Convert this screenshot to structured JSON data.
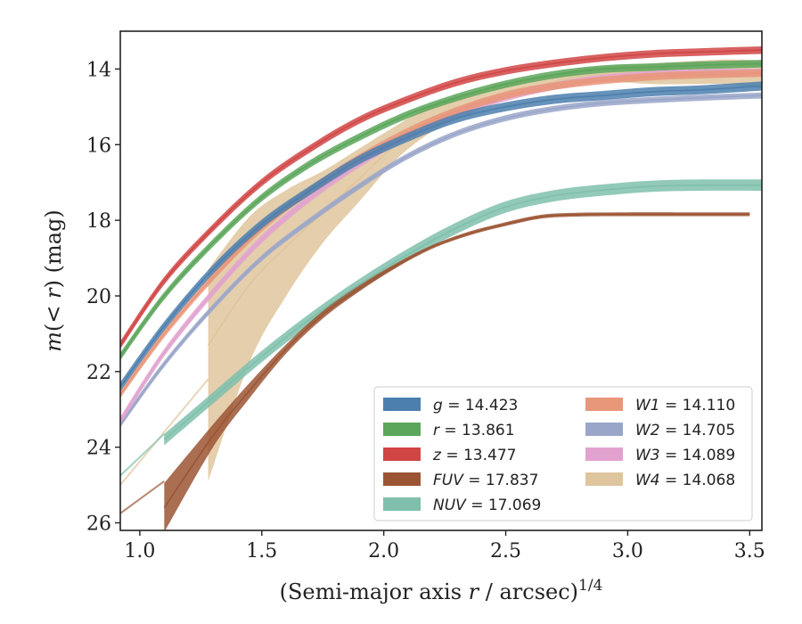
{
  "chart_data": {
    "type": "line",
    "title": "",
    "xlabel": "(Semi-major axis r / arcsec)^{1/4}",
    "ylabel": "m(< r) (mag)",
    "xlim": [
      0.92,
      3.55
    ],
    "ylim": [
      26.2,
      13.0
    ],
    "y_inverted": true,
    "x_ticks": [
      "1.0",
      "1.5",
      "2.0",
      "2.5",
      "3.0",
      "3.5"
    ],
    "y_ticks": [
      "14",
      "16",
      "18",
      "20",
      "22",
      "24",
      "26"
    ],
    "grid": false,
    "legend_position": "lower-right",
    "legend_columns": 2,
    "series": [
      {
        "name": "g = 14.423",
        "label_var": "g",
        "label_val": "= 14.423",
        "color": "#4c7fae",
        "x": [
          0.92,
          1.1,
          1.3,
          1.5,
          1.7,
          1.9,
          2.1,
          2.3,
          2.5,
          2.7,
          2.9,
          3.1,
          3.3,
          3.55
        ],
        "y": [
          22.4,
          20.8,
          19.3,
          18.1,
          17.2,
          16.4,
          15.8,
          15.3,
          15.0,
          14.8,
          14.7,
          14.6,
          14.55,
          14.45
        ],
        "band": 0.12
      },
      {
        "name": "r = 13.861",
        "label_var": "r",
        "label_val": "= 13.861",
        "color": "#5aa65a",
        "x": [
          0.92,
          1.1,
          1.3,
          1.5,
          1.7,
          1.9,
          2.1,
          2.3,
          2.5,
          2.7,
          2.9,
          3.1,
          3.3,
          3.55
        ],
        "y": [
          21.6,
          20.0,
          18.6,
          17.4,
          16.5,
          15.8,
          15.2,
          14.75,
          14.4,
          14.15,
          14.0,
          13.95,
          13.9,
          13.86
        ],
        "band": 0.1
      },
      {
        "name": "z = 13.477",
        "label_var": "z",
        "label_val": "= 13.477",
        "color": "#d14545",
        "x": [
          0.92,
          1.1,
          1.3,
          1.5,
          1.7,
          1.9,
          2.1,
          2.3,
          2.5,
          2.7,
          2.9,
          3.1,
          3.3,
          3.55
        ],
        "y": [
          21.3,
          19.6,
          18.2,
          17.0,
          16.1,
          15.35,
          14.8,
          14.35,
          14.05,
          13.85,
          13.7,
          13.6,
          13.55,
          13.5
        ],
        "band": 0.1
      },
      {
        "name": "FUV = 17.837",
        "label_var": "FUV",
        "label_val": "= 17.837",
        "color": "#9b5534",
        "x": [
          1.1,
          1.3,
          1.45,
          1.6,
          1.75,
          1.9,
          2.05,
          2.2,
          2.35,
          2.5,
          2.65,
          2.8,
          3.0,
          3.2,
          3.5
        ],
        "y": [
          25.6,
          23.7,
          22.5,
          21.4,
          20.5,
          19.8,
          19.2,
          18.7,
          18.35,
          18.1,
          17.9,
          17.85,
          17.84,
          17.84,
          17.84
        ],
        "band_lo": [
          0.65,
          0.3,
          0.2,
          0.12,
          0.1,
          0.08,
          0.06,
          0.05,
          0.05,
          0.05,
          0.05,
          0.05,
          0.05,
          0.05,
          0.05
        ],
        "band_hi": [
          0.65,
          0.3,
          0.2,
          0.12,
          0.1,
          0.08,
          0.06,
          0.05,
          0.05,
          0.05,
          0.05,
          0.05,
          0.05,
          0.05,
          0.05
        ],
        "ext_x": [
          0.92,
          1.1
        ],
        "ext_y": [
          25.75,
          24.9
        ]
      },
      {
        "name": "NUV = 17.069",
        "label_var": "NUV",
        "label_val": "= 17.069",
        "color": "#7fbfac",
        "x": [
          1.1,
          1.3,
          1.5,
          1.7,
          1.9,
          2.1,
          2.3,
          2.5,
          2.7,
          2.9,
          3.1,
          3.3,
          3.55
        ],
        "y": [
          23.8,
          22.7,
          21.6,
          20.6,
          19.7,
          18.9,
          18.2,
          17.65,
          17.35,
          17.2,
          17.1,
          17.07,
          17.07
        ],
        "band": 0.15,
        "ext_x": [
          0.92,
          1.1
        ],
        "ext_y": [
          24.75,
          23.65
        ]
      },
      {
        "name": "W1 = 14.110",
        "label_var": "W1",
        "label_val": "= 14.110",
        "color": "#e9977a",
        "x": [
          0.92,
          1.1,
          1.3,
          1.5,
          1.7,
          1.9,
          2.1,
          2.3,
          2.5,
          2.7,
          2.9,
          3.1,
          3.3,
          3.55
        ],
        "y": [
          22.6,
          21.0,
          19.5,
          18.2,
          17.2,
          16.35,
          15.65,
          15.1,
          14.7,
          14.45,
          14.3,
          14.2,
          14.15,
          14.11
        ],
        "band": 0.1
      },
      {
        "name": "W2 = 14.705",
        "label_var": "W2",
        "label_val": "= 14.705",
        "color": "#9aa6c9",
        "x": [
          0.92,
          1.1,
          1.3,
          1.5,
          1.7,
          1.9,
          2.1,
          2.3,
          2.5,
          2.7,
          2.9,
          3.1,
          3.3,
          3.55
        ],
        "y": [
          23.4,
          21.8,
          20.3,
          19.0,
          18.0,
          17.1,
          16.3,
          15.7,
          15.3,
          15.05,
          14.9,
          14.82,
          14.76,
          14.7
        ],
        "band": 0.08
      },
      {
        "name": "W3 = 14.089",
        "label_var": "W3",
        "label_val": "= 14.089",
        "color": "#e2a2cf",
        "x": [
          0.92,
          1.1,
          1.3,
          1.5,
          1.7,
          1.9,
          2.1,
          2.3,
          2.5,
          2.7,
          2.9,
          3.1,
          3.3,
          3.55
        ],
        "y": [
          23.3,
          21.5,
          19.9,
          18.5,
          17.4,
          16.5,
          15.75,
          15.15,
          14.75,
          14.45,
          14.25,
          14.15,
          14.1,
          14.09
        ],
        "band": 0.1
      },
      {
        "name": "W4 = 14.068",
        "label_var": "W4",
        "label_val": "= 14.068",
        "color": "#dfc59d",
        "x": [
          1.28,
          1.45,
          1.6,
          1.75,
          1.9,
          2.05,
          2.2,
          2.35,
          2.5,
          2.65,
          2.8,
          2.95,
          3.1,
          3.25,
          3.4,
          3.55
        ],
        "y": [
          21.3,
          19.7,
          18.7,
          17.8,
          16.9,
          16.0,
          15.35,
          14.95,
          14.6,
          14.4,
          14.2,
          14.1,
          14.1,
          14.1,
          14.05,
          14.07
        ],
        "band_lo": [
          2.0,
          1.8,
          1.5,
          1.1,
          0.8,
          0.5,
          0.4,
          0.3,
          0.25,
          0.2,
          0.2,
          0.2,
          0.25,
          0.3,
          0.3,
          0.3
        ],
        "band_hi": [
          3.6,
          2.05,
          1.3,
          0.8,
          0.6,
          0.4,
          0.3,
          0.25,
          0.2,
          0.2,
          0.2,
          0.25,
          0.3,
          0.3,
          0.35,
          0.45
        ],
        "ext_x": [
          0.92,
          1.28
        ],
        "ext_y": [
          25.0,
          22.2
        ]
      }
    ]
  }
}
